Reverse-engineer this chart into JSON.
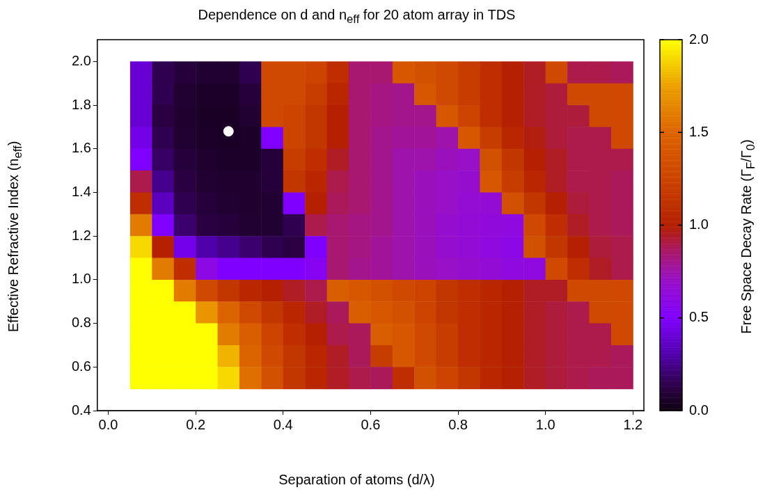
{
  "chart_data": {
    "type": "heatmap",
    "title": "Dependence on d and n$_{eff}$ for 20 atom array in TDS",
    "xlabel": "Separation of atoms (d/λ)",
    "ylabel": "Effective Refractive Index (n$_{eff}$)",
    "clabel": "Free Space Decay Rate (Γ$_{F}$/Γ$_{0}$)",
    "x": [
      0.075,
      0.125,
      0.175,
      0.225,
      0.275,
      0.325,
      0.375,
      0.425,
      0.475,
      0.525,
      0.575,
      0.625,
      0.675,
      0.725,
      0.775,
      0.825,
      0.875,
      0.925,
      0.975,
      1.025,
      1.075,
      1.125,
      1.175
    ],
    "y": [
      1.95,
      1.85,
      1.75,
      1.65,
      1.55,
      1.45,
      1.35,
      1.25,
      1.15,
      1.05,
      0.95,
      0.85,
      0.75,
      0.65,
      0.55
    ],
    "cells": [
      [
        0.4,
        0.15,
        0.1,
        0.08,
        0.08,
        0.15,
        1.3,
        1.3,
        1.25,
        1.1,
        0.85,
        0.85,
        1.4,
        1.35,
        1.3,
        1.2,
        1.1,
        1.0,
        0.95,
        1.3,
        0.9,
        0.9,
        0.88
      ],
      [
        0.4,
        0.15,
        0.08,
        0.06,
        0.06,
        0.1,
        1.3,
        1.3,
        1.2,
        1.05,
        0.85,
        0.82,
        0.8,
        1.4,
        1.3,
        1.2,
        1.1,
        1.0,
        0.95,
        0.92,
        1.3,
        1.3,
        1.3
      ],
      [
        0.4,
        0.12,
        0.07,
        0.05,
        0.05,
        0.08,
        1.3,
        1.25,
        1.15,
        1.0,
        0.85,
        0.82,
        0.8,
        0.8,
        1.4,
        1.25,
        1.1,
        1.0,
        0.95,
        0.92,
        0.92,
        1.3,
        1.3
      ],
      [
        0.45,
        0.15,
        0.08,
        0.06,
        0.05,
        0.06,
        0.5,
        1.25,
        1.15,
        1.0,
        0.85,
        0.8,
        0.78,
        0.78,
        0.75,
        1.4,
        1.2,
        1.05,
        0.98,
        0.92,
        0.9,
        0.9,
        1.3
      ],
      [
        0.5,
        0.18,
        0.1,
        0.07,
        0.06,
        0.06,
        0.1,
        1.2,
        1.1,
        0.95,
        0.85,
        0.8,
        0.75,
        0.75,
        0.72,
        0.7,
        1.35,
        1.15,
        1.0,
        0.95,
        0.9,
        0.9,
        0.9
      ],
      [
        0.9,
        0.25,
        0.12,
        0.08,
        0.07,
        0.07,
        0.1,
        1.15,
        1.05,
        0.9,
        0.85,
        0.8,
        0.75,
        0.72,
        0.7,
        0.68,
        1.4,
        1.2,
        1.05,
        0.95,
        0.9,
        0.9,
        0.88
      ],
      [
        1.1,
        0.35,
        0.15,
        0.1,
        0.08,
        0.07,
        0.08,
        0.5,
        1.0,
        0.88,
        0.85,
        0.8,
        0.75,
        0.72,
        0.7,
        0.66,
        0.65,
        1.35,
        1.15,
        1.0,
        0.92,
        0.9,
        0.88
      ],
      [
        1.6,
        0.5,
        0.2,
        0.12,
        0.1,
        0.08,
        0.08,
        0.15,
        0.9,
        0.85,
        0.82,
        0.8,
        0.75,
        0.72,
        0.68,
        0.65,
        0.63,
        0.62,
        1.3,
        1.1,
        0.95,
        0.9,
        0.88
      ],
      [
        1.9,
        1.0,
        0.45,
        0.3,
        0.25,
        0.2,
        0.15,
        0.12,
        0.5,
        0.85,
        0.82,
        0.78,
        0.75,
        0.72,
        0.68,
        0.65,
        0.62,
        0.6,
        1.35,
        1.15,
        1.0,
        0.92,
        0.9
      ],
      [
        2.0,
        1.6,
        1.1,
        0.6,
        0.5,
        0.5,
        0.5,
        0.5,
        0.55,
        0.85,
        0.8,
        0.78,
        0.75,
        0.72,
        0.7,
        0.68,
        0.65,
        0.62,
        0.62,
        1.3,
        1.1,
        0.95,
        0.9
      ],
      [
        2.0,
        2.0,
        1.6,
        1.3,
        1.15,
        1.05,
        1.0,
        0.95,
        0.9,
        1.45,
        1.4,
        1.35,
        1.3,
        1.25,
        1.15,
        1.1,
        1.05,
        1.0,
        0.95,
        0.95,
        1.3,
        1.3,
        1.3
      ],
      [
        2.0,
        2.0,
        2.0,
        1.7,
        1.5,
        1.3,
        1.15,
        1.05,
        0.95,
        0.88,
        1.45,
        1.4,
        1.35,
        1.25,
        1.15,
        1.1,
        1.05,
        1.0,
        0.95,
        0.92,
        0.9,
        1.3,
        1.3
      ],
      [
        2.0,
        2.0,
        2.0,
        2.0,
        1.6,
        1.45,
        1.25,
        1.1,
        1.0,
        0.9,
        0.88,
        1.45,
        1.4,
        1.3,
        1.2,
        1.1,
        1.05,
        1.0,
        0.95,
        0.92,
        0.9,
        0.9,
        1.3
      ],
      [
        2.0,
        2.0,
        2.0,
        2.0,
        1.8,
        1.5,
        1.3,
        1.15,
        1.05,
        0.95,
        0.88,
        1.2,
        1.4,
        1.3,
        1.2,
        1.1,
        1.05,
        1.0,
        0.95,
        0.92,
        0.9,
        0.9,
        0.88
      ],
      [
        2.0,
        2.0,
        2.0,
        2.0,
        1.9,
        1.55,
        1.35,
        1.15,
        1.05,
        0.95,
        0.9,
        0.88,
        1.1,
        1.35,
        1.25,
        1.15,
        1.05,
        1.0,
        0.95,
        0.92,
        0.9,
        0.88,
        0.88
      ]
    ],
    "series": [
      {
        "type": "scatter",
        "x": [
          0.275
        ],
        "values": [
          1.68
        ],
        "color": "#ffffff"
      }
    ],
    "marker": "circle",
    "xlim": [
      -0.025,
      1.225
    ],
    "ylim": [
      0.4,
      2.1
    ],
    "clim": [
      0,
      2
    ],
    "xticks": [
      {
        "value": 0,
        "label": "0.0"
      },
      {
        "value": 0.2,
        "label": "0.2"
      },
      {
        "value": 0.4,
        "label": "0.4"
      },
      {
        "value": 0.6,
        "label": "0.6"
      },
      {
        "value": 0.8,
        "label": "0.8"
      },
      {
        "value": 1,
        "label": "1.0"
      },
      {
        "value": 1.2,
        "label": "1.2"
      }
    ],
    "yticks": [
      {
        "value": 0.4,
        "label": "0.4"
      },
      {
        "value": 0.6,
        "label": "0.6"
      },
      {
        "value": 0.8,
        "label": "0.8"
      },
      {
        "value": 1,
        "label": "1.0"
      },
      {
        "value": 1.2,
        "label": "1.2"
      },
      {
        "value": 1.4,
        "label": "1.4"
      },
      {
        "value": 1.6,
        "label": "1.6"
      },
      {
        "value": 1.8,
        "label": "1.8"
      },
      {
        "value": 2,
        "label": "2.0"
      }
    ],
    "cticks": [
      {
        "value": 0,
        "label": "0.0"
      },
      {
        "value": 0.5,
        "label": "0.5"
      },
      {
        "value": 1,
        "label": "1.0"
      },
      {
        "value": 1.5,
        "label": "1.5"
      },
      {
        "value": 2,
        "label": "2.0"
      }
    ],
    "grid": false,
    "legend": false
  }
}
